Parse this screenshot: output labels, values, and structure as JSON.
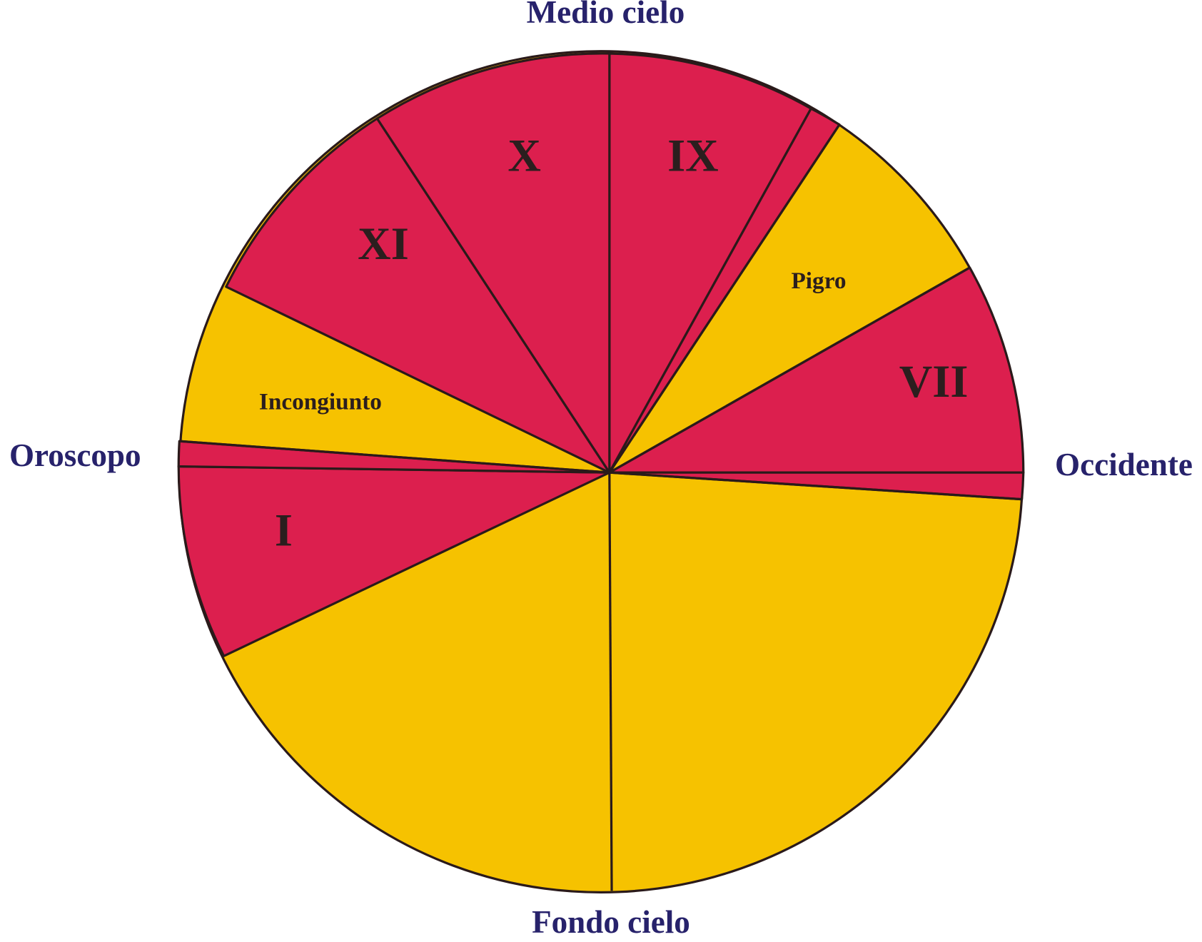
{
  "angles": {
    "top": "Medio cielo",
    "right": "Occidente",
    "left": "Oroscopo",
    "bottom": "Fondo cielo"
  },
  "sectors": [
    "IX",
    "VII",
    "I",
    "XI",
    "X"
  ],
  "notes": [
    "Pigro",
    "Incongiunto"
  ]
}
